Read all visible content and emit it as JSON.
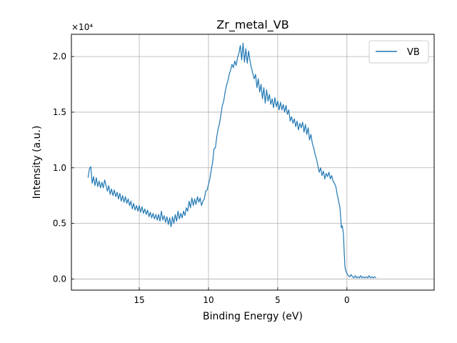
{
  "chart_data": {
    "type": "line",
    "title": "Zr_metal_VB",
    "xlabel": "Binding Energy (eV)",
    "ylabel": "Intensity (a.u.)",
    "y_offset_text": "×10⁴",
    "y_multiplier": 10000,
    "x_reversed": true,
    "xlim": [
      19.9,
      -6.3
    ],
    "ylim": [
      -0.1,
      2.2
    ],
    "x_ticks": [
      15,
      10,
      5,
      0
    ],
    "y_ticks": [
      0.0,
      0.5,
      1.0,
      1.5,
      2.0
    ],
    "y_tick_labels": [
      "0.0",
      "0.5",
      "1.0",
      "1.5",
      "2.0"
    ],
    "grid": true,
    "legend_position": "top-right",
    "series": [
      {
        "name": "VB",
        "color": "#1f77b4",
        "points": [
          [
            18.7,
            0.91
          ],
          [
            18.6,
            0.99
          ],
          [
            18.5,
            1.01
          ],
          [
            18.4,
            0.86
          ],
          [
            18.3,
            0.92
          ],
          [
            18.2,
            0.84
          ],
          [
            18.1,
            0.91
          ],
          [
            18.0,
            0.83
          ],
          [
            17.9,
            0.88
          ],
          [
            17.8,
            0.82
          ],
          [
            17.7,
            0.87
          ],
          [
            17.6,
            0.82
          ],
          [
            17.5,
            0.89
          ],
          [
            17.4,
            0.84
          ],
          [
            17.3,
            0.79
          ],
          [
            17.2,
            0.84
          ],
          [
            17.1,
            0.76
          ],
          [
            17.0,
            0.81
          ],
          [
            16.9,
            0.75
          ],
          [
            16.8,
            0.8
          ],
          [
            16.7,
            0.74
          ],
          [
            16.6,
            0.78
          ],
          [
            16.5,
            0.72
          ],
          [
            16.4,
            0.77
          ],
          [
            16.3,
            0.7
          ],
          [
            16.2,
            0.75
          ],
          [
            16.1,
            0.69
          ],
          [
            16.0,
            0.74
          ],
          [
            15.9,
            0.68
          ],
          [
            15.8,
            0.72
          ],
          [
            15.7,
            0.66
          ],
          [
            15.6,
            0.7
          ],
          [
            15.5,
            0.63
          ],
          [
            15.4,
            0.68
          ],
          [
            15.3,
            0.62
          ],
          [
            15.2,
            0.66
          ],
          [
            15.1,
            0.61
          ],
          [
            15.0,
            0.66
          ],
          [
            14.9,
            0.6
          ],
          [
            14.8,
            0.65
          ],
          [
            14.7,
            0.59
          ],
          [
            14.6,
            0.63
          ],
          [
            14.5,
            0.58
          ],
          [
            14.4,
            0.62
          ],
          [
            14.3,
            0.56
          ],
          [
            14.2,
            0.6
          ],
          [
            14.1,
            0.55
          ],
          [
            14.0,
            0.59
          ],
          [
            13.9,
            0.54
          ],
          [
            13.8,
            0.58
          ],
          [
            13.7,
            0.53
          ],
          [
            13.6,
            0.58
          ],
          [
            13.5,
            0.52
          ],
          [
            13.4,
            0.61
          ],
          [
            13.3,
            0.53
          ],
          [
            13.2,
            0.57
          ],
          [
            13.1,
            0.51
          ],
          [
            13.0,
            0.56
          ],
          [
            12.9,
            0.49
          ],
          [
            12.8,
            0.55
          ],
          [
            12.7,
            0.47
          ],
          [
            12.6,
            0.56
          ],
          [
            12.5,
            0.5
          ],
          [
            12.4,
            0.58
          ],
          [
            12.3,
            0.52
          ],
          [
            12.2,
            0.61
          ],
          [
            12.1,
            0.54
          ],
          [
            12.0,
            0.59
          ],
          [
            11.9,
            0.55
          ],
          [
            11.8,
            0.61
          ],
          [
            11.7,
            0.57
          ],
          [
            11.6,
            0.64
          ],
          [
            11.5,
            0.61
          ],
          [
            11.4,
            0.7
          ],
          [
            11.3,
            0.64
          ],
          [
            11.2,
            0.73
          ],
          [
            11.1,
            0.66
          ],
          [
            11.0,
            0.72
          ],
          [
            10.9,
            0.67
          ],
          [
            10.8,
            0.74
          ],
          [
            10.7,
            0.69
          ],
          [
            10.6,
            0.73
          ],
          [
            10.5,
            0.66
          ],
          [
            10.4,
            0.7
          ],
          [
            10.3,
            0.72
          ],
          [
            10.2,
            0.79
          ],
          [
            10.1,
            0.8
          ],
          [
            10.0,
            0.85
          ],
          [
            9.9,
            0.9
          ],
          [
            9.8,
            0.98
          ],
          [
            9.7,
            1.05
          ],
          [
            9.6,
            1.17
          ],
          [
            9.5,
            1.18
          ],
          [
            9.4,
            1.28
          ],
          [
            9.3,
            1.35
          ],
          [
            9.2,
            1.4
          ],
          [
            9.1,
            1.48
          ],
          [
            9.0,
            1.56
          ],
          [
            8.9,
            1.6
          ],
          [
            8.8,
            1.68
          ],
          [
            8.7,
            1.74
          ],
          [
            8.6,
            1.78
          ],
          [
            8.5,
            1.84
          ],
          [
            8.4,
            1.88
          ],
          [
            8.3,
            1.93
          ],
          [
            8.2,
            1.9
          ],
          [
            8.1,
            1.96
          ],
          [
            8.0,
            1.92
          ],
          [
            7.9,
            1.99
          ],
          [
            7.8,
            2.03
          ],
          [
            7.7,
            2.1
          ],
          [
            7.6,
            1.97
          ],
          [
            7.5,
            2.12
          ],
          [
            7.4,
            1.95
          ],
          [
            7.3,
            2.07
          ],
          [
            7.2,
            1.94
          ],
          [
            7.1,
            2.05
          ],
          [
            7.0,
            1.96
          ],
          [
            6.9,
            1.9
          ],
          [
            6.8,
            1.85
          ],
          [
            6.7,
            1.8
          ],
          [
            6.6,
            1.84
          ],
          [
            6.5,
            1.72
          ],
          [
            6.4,
            1.8
          ],
          [
            6.3,
            1.68
          ],
          [
            6.2,
            1.75
          ],
          [
            6.1,
            1.62
          ],
          [
            6.0,
            1.72
          ],
          [
            5.9,
            1.58
          ],
          [
            5.8,
            1.7
          ],
          [
            5.7,
            1.6
          ],
          [
            5.6,
            1.66
          ],
          [
            5.5,
            1.57
          ],
          [
            5.4,
            1.62
          ],
          [
            5.3,
            1.54
          ],
          [
            5.2,
            1.63
          ],
          [
            5.1,
            1.55
          ],
          [
            5.0,
            1.6
          ],
          [
            4.9,
            1.52
          ],
          [
            4.8,
            1.59
          ],
          [
            4.7,
            1.52
          ],
          [
            4.6,
            1.57
          ],
          [
            4.5,
            1.5
          ],
          [
            4.4,
            1.56
          ],
          [
            4.3,
            1.48
          ],
          [
            4.2,
            1.52
          ],
          [
            4.1,
            1.42
          ],
          [
            4.0,
            1.46
          ],
          [
            3.9,
            1.4
          ],
          [
            3.8,
            1.44
          ],
          [
            3.7,
            1.37
          ],
          [
            3.6,
            1.42
          ],
          [
            3.5,
            1.34
          ],
          [
            3.4,
            1.4
          ],
          [
            3.3,
            1.36
          ],
          [
            3.2,
            1.41
          ],
          [
            3.1,
            1.32
          ],
          [
            3.0,
            1.39
          ],
          [
            2.9,
            1.3
          ],
          [
            2.8,
            1.36
          ],
          [
            2.7,
            1.25
          ],
          [
            2.6,
            1.3
          ],
          [
            2.5,
            1.22
          ],
          [
            2.4,
            1.18
          ],
          [
            2.3,
            1.12
          ],
          [
            2.2,
            1.08
          ],
          [
            2.1,
            1.02
          ],
          [
            2.0,
            0.96
          ],
          [
            1.9,
            1.0
          ],
          [
            1.8,
            0.93
          ],
          [
            1.7,
            0.97
          ],
          [
            1.6,
            0.9
          ],
          [
            1.5,
            0.95
          ],
          [
            1.4,
            0.92
          ],
          [
            1.3,
            0.96
          ],
          [
            1.2,
            0.9
          ],
          [
            1.1,
            0.93
          ],
          [
            1.0,
            0.88
          ],
          [
            0.9,
            0.86
          ],
          [
            0.8,
            0.83
          ],
          [
            0.7,
            0.76
          ],
          [
            0.6,
            0.7
          ],
          [
            0.5,
            0.64
          ],
          [
            0.45,
            0.55
          ],
          [
            0.4,
            0.46
          ],
          [
            0.35,
            0.48
          ],
          [
            0.3,
            0.45
          ],
          [
            0.25,
            0.4
          ],
          [
            0.2,
            0.25
          ],
          [
            0.15,
            0.12
          ],
          [
            0.1,
            0.08
          ],
          [
            0.0,
            0.05
          ],
          [
            -0.1,
            0.03
          ],
          [
            -0.2,
            0.02
          ],
          [
            -0.3,
            0.04
          ],
          [
            -0.4,
            0.02
          ],
          [
            -0.5,
            0.01
          ],
          [
            -0.6,
            0.03
          ],
          [
            -0.7,
            0.01
          ],
          [
            -0.8,
            0.02
          ],
          [
            -0.9,
            0.01
          ],
          [
            -1.0,
            0.03
          ],
          [
            -1.1,
            0.01
          ],
          [
            -1.2,
            0.02
          ],
          [
            -1.3,
            0.01
          ],
          [
            -1.4,
            0.02
          ],
          [
            -1.5,
            0.01
          ],
          [
            -1.6,
            0.03
          ],
          [
            -1.7,
            0.01
          ],
          [
            -1.8,
            0.02
          ],
          [
            -1.9,
            0.01
          ],
          [
            -2.0,
            0.02
          ],
          [
            -2.1,
            0.01
          ]
        ]
      }
    ]
  }
}
